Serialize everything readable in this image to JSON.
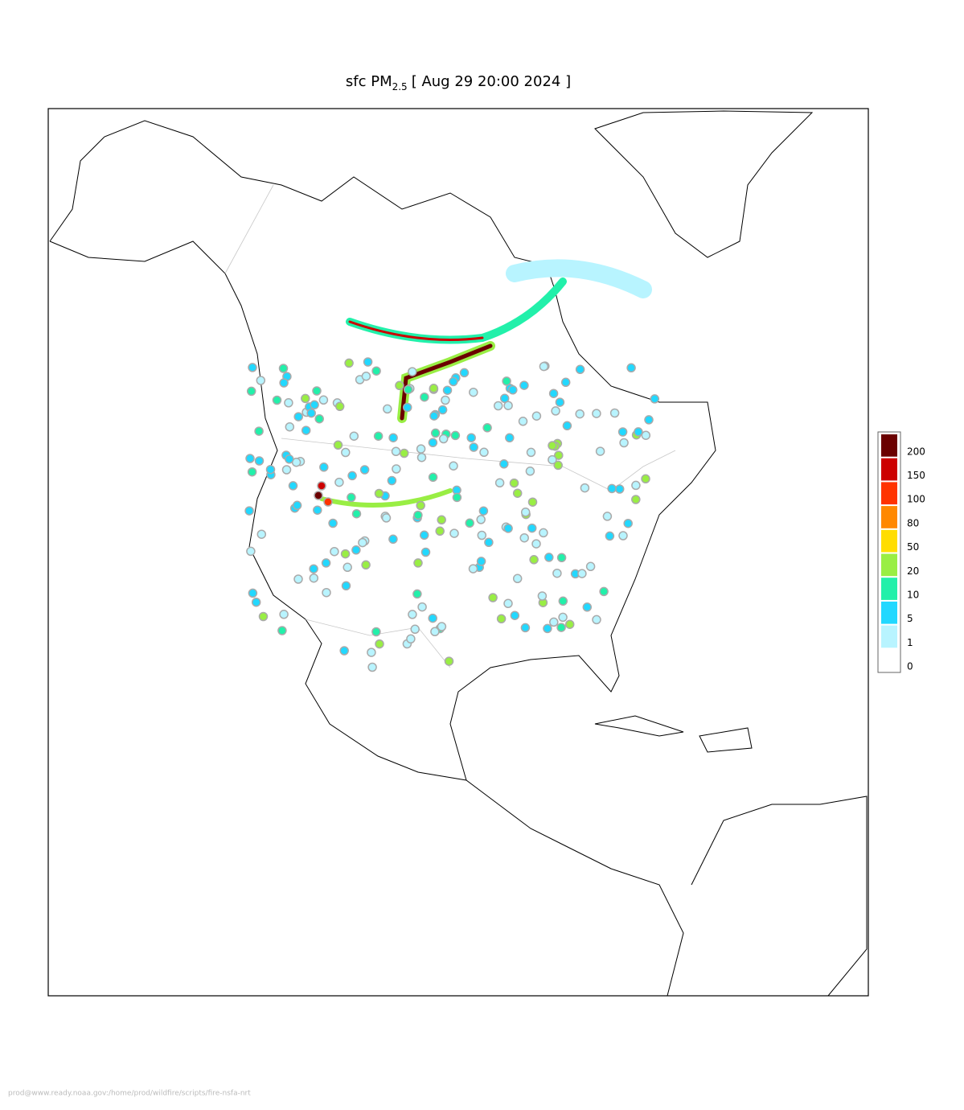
{
  "title": {
    "prefix": "sfc PM",
    "subscript": "2.5",
    "suffix": "[ Aug 29 20:00 2024 ]"
  },
  "legend": {
    "levels": [
      {
        "label": "200",
        "color": "#6b0000"
      },
      {
        "label": "150",
        "color": "#cc0000"
      },
      {
        "label": "100",
        "color": "#ff3300"
      },
      {
        "label": "80",
        "color": "#ff8800"
      },
      {
        "label": "50",
        "color": "#ffdd00"
      },
      {
        "label": "20",
        "color": "#99ee44"
      },
      {
        "label": "10",
        "color": "#22f0aa"
      },
      {
        "label": "5",
        "color": "#22d8ff"
      },
      {
        "label": "1",
        "color": "#b8f4ff"
      },
      {
        "label": "0",
        "color": "#ffffff"
      }
    ]
  },
  "footer": "prod@www.ready.noaa.gov:/home/prod/wildfire/scripts/fire-nsfa-nrt"
}
